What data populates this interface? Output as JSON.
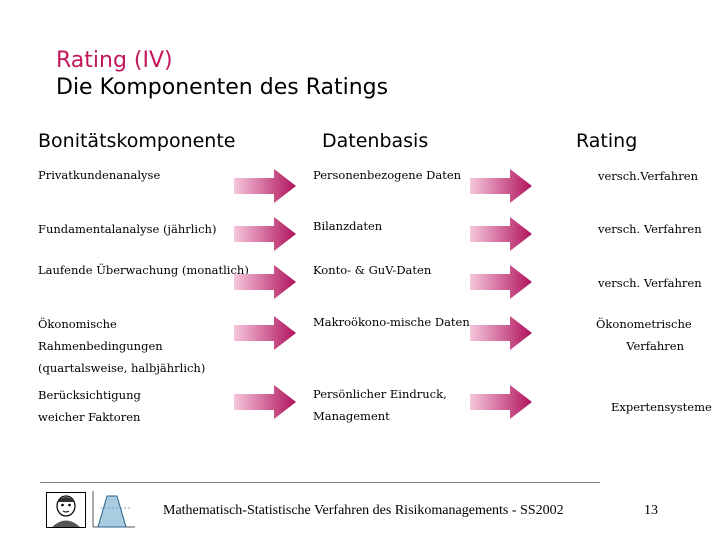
{
  "title": {
    "line1": "Rating (IV)",
    "line2": "Die Komponenten des Ratings"
  },
  "columns": [
    "Bonitätskomponente",
    "Datenbasis",
    "Rating"
  ],
  "rows": [
    {
      "component": [
        "Privatkundenanalyse"
      ],
      "data": [
        "Personenbezogene Daten"
      ],
      "rating": [
        "versch.Verfahren"
      ]
    },
    {
      "component": [
        "Fundamentalanalyse (jährlich)"
      ],
      "data": [
        "Bilanzdaten"
      ],
      "rating": [
        "versch. Verfahren"
      ]
    },
    {
      "component": [
        "Laufende Überwachung (monatlich)"
      ],
      "data": [
        "Konto- & GuV-Daten"
      ],
      "rating": [
        "versch. Verfahren"
      ]
    },
    {
      "component": [
        "Ökonomische",
        "Rahmenbedingungen",
        "(quartalsweise, halbjährlich)"
      ],
      "data": [
        "Makroökono-mische Daten"
      ],
      "rating": [
        "Ökonometrische",
        "Verfahren"
      ]
    },
    {
      "component": [
        "Berücksichtigung",
        "weicher Faktoren"
      ],
      "data": [
        "Persönlicher Eindruck,",
        "Management"
      ],
      "rating": [
        "Expertensysteme"
      ]
    }
  ],
  "footer": {
    "text": "Mathematisch-Statistische Verfahren des Risikomanagements - SS2002",
    "page": "13"
  },
  "colors": {
    "title_accent": "#c2185b",
    "arrow_light": "#f6c6dc",
    "arrow_dark": "#b0125c"
  }
}
